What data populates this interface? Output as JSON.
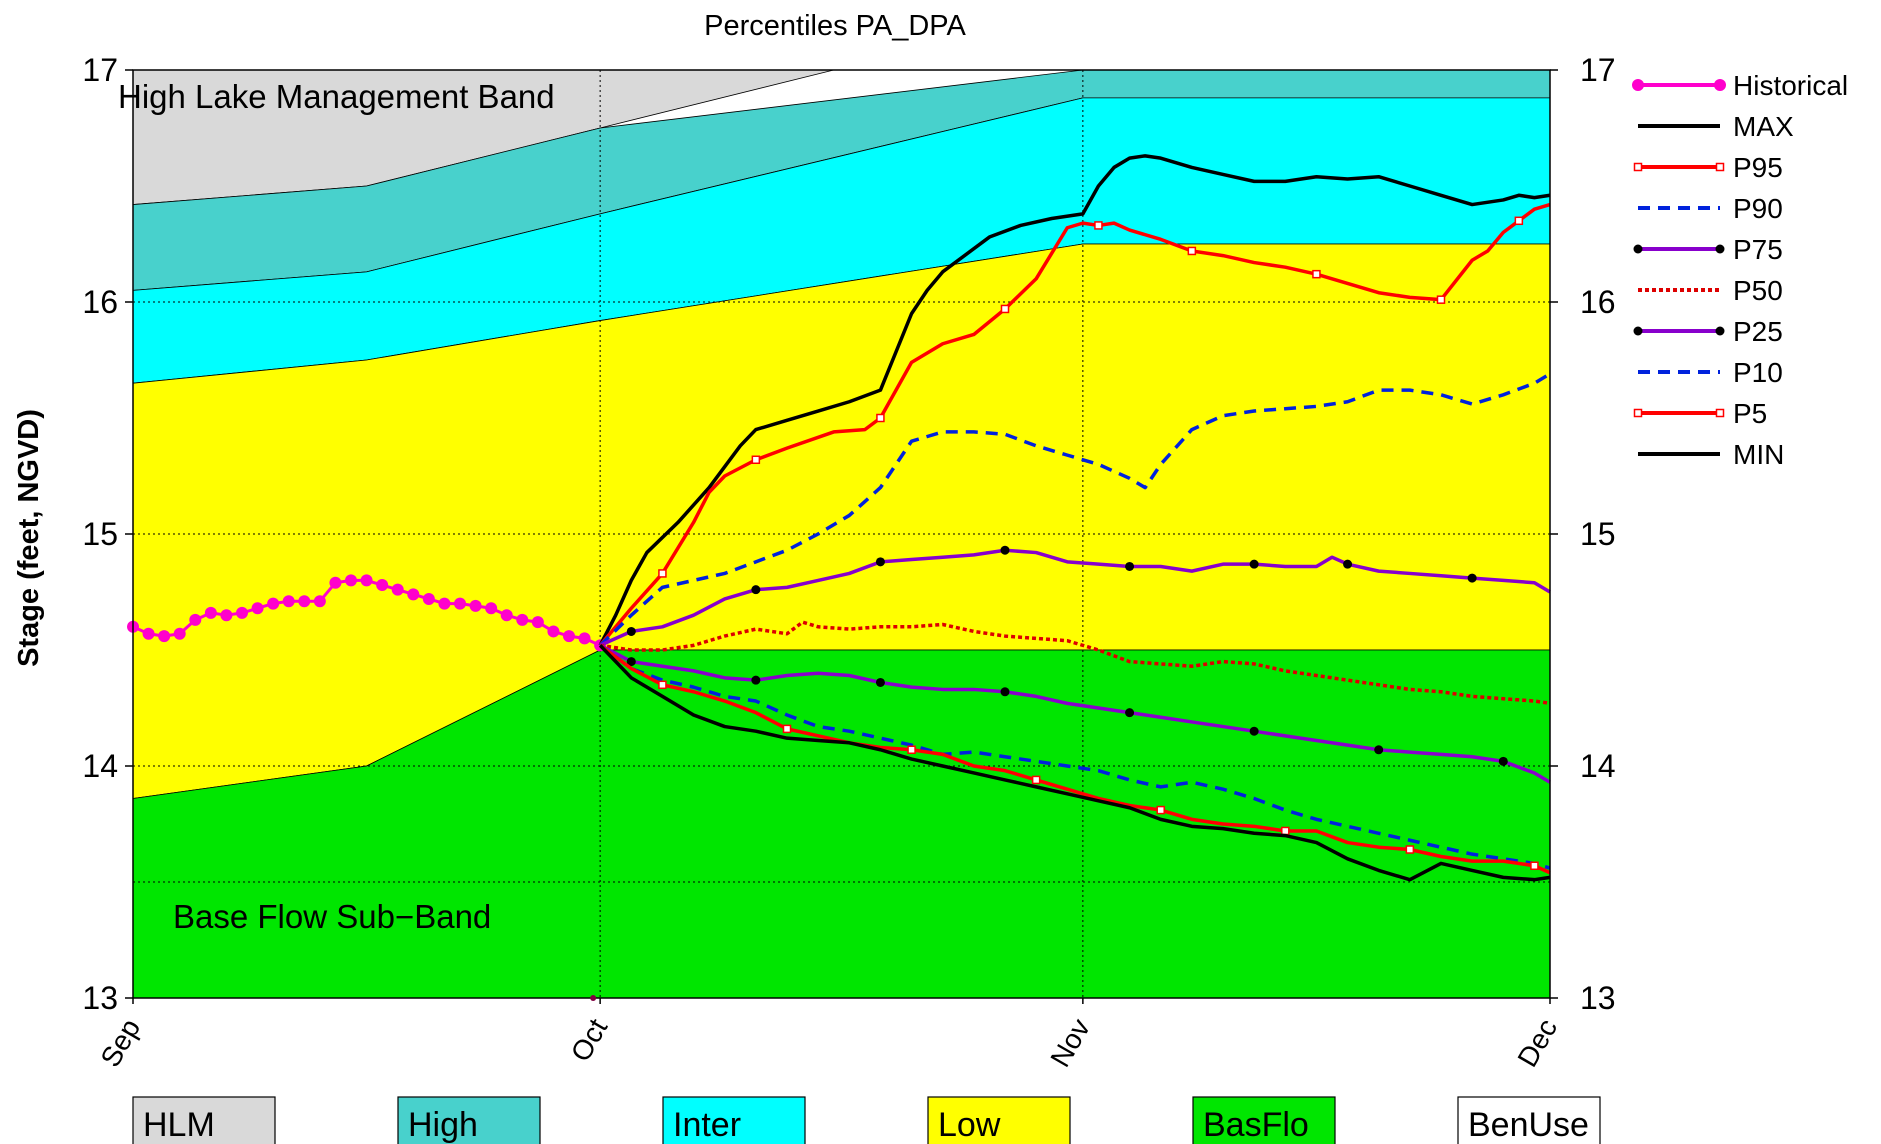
{
  "chart_data": {
    "type": "line",
    "title": "Percentiles PA_DPA",
    "ylabel": "Stage (feet, NGVD)",
    "xlabel": "",
    "x_unit": "day",
    "xlim": [
      0,
      91
    ],
    "ylim": [
      13,
      17
    ],
    "x_ticks": [
      {
        "x": 0,
        "label": "Sep"
      },
      {
        "x": 30,
        "label": "Oct"
      },
      {
        "x": 61,
        "label": "Nov"
      },
      {
        "x": 91,
        "label": "Dec"
      }
    ],
    "y_ticks": [
      13,
      14,
      15,
      16,
      17
    ],
    "y_ticks_right": [
      13,
      14,
      15,
      16,
      17
    ],
    "grid": true,
    "band_annotations": [
      "High Lake Management Band",
      "Base Flow Sub−Band"
    ],
    "bands": [
      {
        "name": "HLM",
        "color": "#d9d9d9",
        "x": [
          0,
          15,
          30,
          45,
          61,
          91
        ],
        "lower": [
          16.42,
          16.5,
          16.75,
          17.0,
          17.0,
          17.0
        ],
        "upper": [
          17,
          17,
          17,
          17,
          17,
          17
        ]
      },
      {
        "name": "High",
        "color": "#48d1cc",
        "x": [
          0,
          15,
          30,
          61,
          91
        ],
        "lower": [
          16.05,
          16.13,
          16.38,
          16.88,
          16.88
        ],
        "upper": [
          16.42,
          16.5,
          16.75,
          17.0,
          17.0
        ]
      },
      {
        "name": "Inter",
        "color": "#00ffff",
        "x": [
          0,
          15,
          30,
          61,
          91
        ],
        "lower": [
          15.65,
          15.75,
          15.92,
          16.25,
          16.25
        ],
        "upper": [
          16.05,
          16.13,
          16.38,
          16.88,
          16.88
        ]
      },
      {
        "name": "Low",
        "color": "#ffff00",
        "x": [
          0,
          15,
          30,
          61,
          91
        ],
        "lower": [
          13.86,
          14.0,
          14.5,
          14.5,
          14.5
        ],
        "upper": [
          15.65,
          15.75,
          15.92,
          16.25,
          16.25
        ]
      },
      {
        "name": "BasFlo",
        "color": "#00e600",
        "x": [
          0,
          15,
          30,
          61,
          91
        ],
        "lower": [
          13,
          13,
          13,
          13,
          13
        ],
        "upper": [
          13.86,
          14.0,
          14.5,
          14.5,
          14.5
        ]
      }
    ],
    "base_flow_line": 13.5,
    "band_legend": [
      {
        "label": "HLM",
        "color": "#d9d9d9"
      },
      {
        "label": "High",
        "color": "#48d1cc"
      },
      {
        "label": "Inter",
        "color": "#00ffff"
      },
      {
        "label": "Low",
        "color": "#ffff00"
      },
      {
        "label": "BasFlo",
        "color": "#00e600"
      },
      {
        "label": "BenUse",
        "color": "#ffffff"
      }
    ],
    "series": [
      {
        "name": "Historical",
        "color": "#ff00cc",
        "dash": "",
        "marker": "pinkdot",
        "x": [
          0,
          1,
          2,
          3,
          4,
          5,
          6,
          7,
          8,
          9,
          10,
          11,
          12,
          13,
          14,
          15,
          16,
          17,
          18,
          19,
          20,
          21,
          22,
          23,
          24,
          25,
          26,
          27,
          28,
          29,
          30
        ],
        "y": [
          14.6,
          14.57,
          14.56,
          14.57,
          14.63,
          14.66,
          14.65,
          14.66,
          14.68,
          14.7,
          14.71,
          14.71,
          14.71,
          14.79,
          14.8,
          14.8,
          14.78,
          14.76,
          14.74,
          14.72,
          14.7,
          14.7,
          14.69,
          14.68,
          14.65,
          14.63,
          14.62,
          14.58,
          14.56,
          14.55,
          14.52
        ]
      },
      {
        "name": "MAX",
        "color": "#000000",
        "dash": "",
        "marker": "none",
        "x": [
          30,
          31,
          32,
          33,
          35,
          37,
          39,
          40,
          42,
          44,
          46,
          48,
          50,
          51,
          52,
          55,
          57,
          59,
          61,
          62,
          63,
          64,
          65,
          66,
          67,
          68,
          70,
          72,
          74,
          76,
          78,
          80,
          82,
          84,
          86,
          88,
          89,
          90,
          91
        ],
        "y": [
          14.52,
          14.65,
          14.8,
          14.92,
          15.05,
          15.2,
          15.38,
          15.45,
          15.49,
          15.53,
          15.57,
          15.62,
          15.95,
          16.05,
          16.13,
          16.28,
          16.33,
          16.36,
          16.38,
          16.5,
          16.58,
          16.62,
          16.63,
          16.62,
          16.6,
          16.58,
          16.55,
          16.52,
          16.52,
          16.54,
          16.53,
          16.54,
          16.5,
          16.46,
          16.42,
          16.44,
          16.46,
          16.45,
          16.46
        ]
      },
      {
        "name": "P95",
        "color": "#ff0000",
        "dash": "",
        "marker": "whitesq",
        "x": [
          30,
          32,
          34,
          36,
          37,
          38,
          40,
          42,
          45,
          47,
          48,
          50,
          52,
          54,
          56,
          58,
          60,
          61,
          62,
          63,
          64,
          66,
          68,
          70,
          72,
          74,
          76,
          78,
          80,
          82,
          84,
          86,
          87,
          88,
          89,
          90,
          91
        ],
        "y": [
          14.52,
          14.68,
          14.83,
          15.05,
          15.18,
          15.25,
          15.32,
          15.37,
          15.44,
          15.45,
          15.5,
          15.74,
          15.82,
          15.86,
          15.97,
          16.1,
          16.32,
          16.34,
          16.33,
          16.34,
          16.31,
          16.27,
          16.22,
          16.2,
          16.17,
          16.15,
          16.12,
          16.08,
          16.04,
          16.02,
          16.01,
          16.18,
          16.22,
          16.3,
          16.35,
          16.4,
          16.42
        ]
      },
      {
        "name": "P90",
        "color": "#0022dd",
        "dash": "12,8",
        "marker": "none",
        "x": [
          30,
          32,
          34,
          36,
          38,
          40,
          42,
          44,
          46,
          48,
          50,
          52,
          54,
          56,
          58,
          60,
          62,
          64,
          65,
          66,
          68,
          70,
          72,
          74,
          76,
          78,
          80,
          82,
          84,
          86,
          88,
          90,
          91
        ],
        "y": [
          14.52,
          14.65,
          14.77,
          14.8,
          14.83,
          14.88,
          14.93,
          15.0,
          15.08,
          15.2,
          15.4,
          15.44,
          15.44,
          15.43,
          15.38,
          15.34,
          15.3,
          15.24,
          15.2,
          15.3,
          15.45,
          15.51,
          15.53,
          15.54,
          15.55,
          15.57,
          15.62,
          15.62,
          15.6,
          15.56,
          15.6,
          15.65,
          15.69
        ]
      },
      {
        "name": "P75",
        "color": "#8800cc",
        "dash": "",
        "marker": "blackdot",
        "x": [
          30,
          32,
          34,
          36,
          38,
          40,
          42,
          44,
          46,
          48,
          50,
          52,
          54,
          56,
          58,
          60,
          62,
          64,
          66,
          68,
          70,
          72,
          74,
          76,
          77,
          78,
          80,
          82,
          84,
          86,
          88,
          90,
          91
        ],
        "y": [
          14.52,
          14.58,
          14.6,
          14.65,
          14.72,
          14.76,
          14.77,
          14.8,
          14.83,
          14.88,
          14.89,
          14.9,
          14.91,
          14.93,
          14.92,
          14.88,
          14.87,
          14.86,
          14.86,
          14.84,
          14.87,
          14.87,
          14.86,
          14.86,
          14.9,
          14.87,
          14.84,
          14.83,
          14.82,
          14.81,
          14.8,
          14.79,
          14.75
        ]
      },
      {
        "name": "P50",
        "color": "#dd0000",
        "dash": "4,3",
        "marker": "none",
        "x": [
          30,
          32,
          34,
          36,
          38,
          40,
          42,
          43,
          44,
          46,
          48,
          50,
          52,
          54,
          56,
          58,
          60,
          62,
          64,
          66,
          68,
          70,
          72,
          74,
          76,
          78,
          80,
          82,
          84,
          86,
          88,
          90,
          91
        ],
        "y": [
          14.52,
          14.5,
          14.5,
          14.52,
          14.56,
          14.59,
          14.57,
          14.62,
          14.6,
          14.59,
          14.6,
          14.6,
          14.61,
          14.58,
          14.56,
          14.55,
          14.54,
          14.5,
          14.45,
          14.44,
          14.43,
          14.45,
          14.44,
          14.41,
          14.39,
          14.37,
          14.35,
          14.33,
          14.32,
          14.3,
          14.29,
          14.28,
          14.27
        ]
      },
      {
        "name": "P25",
        "color": "#8800cc",
        "dash": "",
        "marker": "blackdot",
        "x": [
          30,
          32,
          34,
          36,
          38,
          40,
          42,
          44,
          46,
          48,
          50,
          52,
          54,
          56,
          58,
          60,
          62,
          64,
          66,
          68,
          70,
          72,
          74,
          76,
          78,
          80,
          82,
          84,
          86,
          88,
          90,
          91
        ],
        "y": [
          14.52,
          14.45,
          14.43,
          14.41,
          14.38,
          14.37,
          14.39,
          14.4,
          14.39,
          14.36,
          14.34,
          14.33,
          14.33,
          14.32,
          14.3,
          14.27,
          14.25,
          14.23,
          14.21,
          14.19,
          14.17,
          14.15,
          14.13,
          14.11,
          14.09,
          14.07,
          14.06,
          14.05,
          14.04,
          14.02,
          13.97,
          13.93
        ]
      },
      {
        "name": "P10",
        "color": "#0022dd",
        "dash": "12,8",
        "marker": "none",
        "x": [
          30,
          32,
          34,
          36,
          38,
          40,
          42,
          44,
          46,
          48,
          50,
          52,
          54,
          56,
          58,
          60,
          62,
          64,
          66,
          68,
          70,
          72,
          74,
          76,
          78,
          80,
          82,
          84,
          86,
          88,
          90,
          91
        ],
        "y": [
          14.52,
          14.42,
          14.37,
          14.34,
          14.3,
          14.28,
          14.22,
          14.17,
          14.15,
          14.12,
          14.09,
          14.05,
          14.06,
          14.04,
          14.02,
          14.0,
          13.98,
          13.94,
          13.91,
          13.93,
          13.9,
          13.86,
          13.81,
          13.77,
          13.74,
          13.71,
          13.68,
          13.65,
          13.62,
          13.6,
          13.58,
          13.56
        ]
      },
      {
        "name": "P5",
        "color": "#ff0000",
        "dash": "",
        "marker": "whitesq",
        "x": [
          30,
          32,
          34,
          36,
          38,
          40,
          42,
          44,
          46,
          48,
          50,
          52,
          54,
          56,
          58,
          60,
          62,
          64,
          66,
          68,
          70,
          72,
          74,
          76,
          78,
          80,
          82,
          84,
          86,
          88,
          90,
          91
        ],
        "y": [
          14.52,
          14.42,
          14.35,
          14.32,
          14.28,
          14.23,
          14.16,
          14.13,
          14.1,
          14.08,
          14.07,
          14.05,
          14.0,
          13.98,
          13.94,
          13.9,
          13.86,
          13.83,
          13.81,
          13.77,
          13.75,
          13.74,
          13.72,
          13.72,
          13.67,
          13.65,
          13.64,
          13.61,
          13.59,
          13.59,
          13.57,
          13.54
        ]
      },
      {
        "name": "MIN",
        "color": "#000000",
        "dash": "",
        "marker": "none",
        "x": [
          30,
          32,
          34,
          36,
          38,
          40,
          42,
          44,
          46,
          48,
          50,
          52,
          54,
          56,
          58,
          60,
          62,
          64,
          66,
          68,
          70,
          72,
          74,
          76,
          78,
          80,
          82,
          84,
          86,
          88,
          90,
          91
        ],
        "y": [
          14.52,
          14.38,
          14.3,
          14.22,
          14.17,
          14.15,
          14.12,
          14.11,
          14.1,
          14.07,
          14.03,
          14.0,
          13.97,
          13.94,
          13.91,
          13.88,
          13.85,
          13.82,
          13.77,
          13.74,
          13.73,
          13.71,
          13.7,
          13.67,
          13.6,
          13.55,
          13.51,
          13.58,
          13.55,
          13.52,
          13.51,
          13.52
        ]
      }
    ]
  }
}
